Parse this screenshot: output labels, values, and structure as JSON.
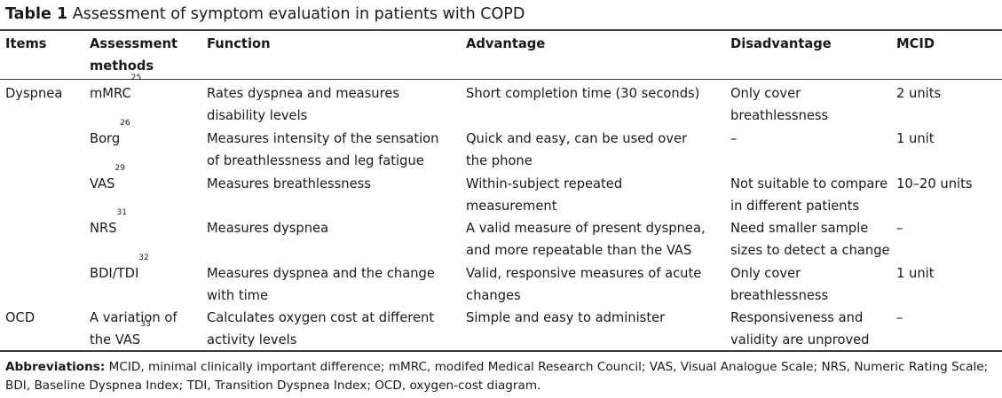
{
  "caption": {
    "number": "Table 1",
    "title": "Assessment of symptom evaluation in patients with COPD"
  },
  "headers": {
    "items": "Items",
    "methods_line1": "Assessment",
    "methods_line2": "methods",
    "function": "Function",
    "advantage": "Advantage",
    "disadvantage": "Disadvantage",
    "mcid": "MCID"
  },
  "rows": [
    {
      "item": "Dyspnea",
      "method": "mMRC",
      "ref": "25",
      "function": [
        "Rates dyspnea and measures",
        "disability levels"
      ],
      "advantage": [
        "Short completion time (30 seconds)"
      ],
      "disadvantage": [
        "Only cover",
        "breathlessness"
      ],
      "mcid": "2 units"
    },
    {
      "item": "",
      "method": "Borg",
      "ref": "26",
      "function": [
        "Measures intensity of the sensation",
        "of breathlessness and leg fatigue"
      ],
      "advantage": [
        "Quick and easy, can be used over",
        "the phone"
      ],
      "disadvantage": [
        "–"
      ],
      "mcid": "1 unit"
    },
    {
      "item": "",
      "method": "VAS",
      "ref": "29",
      "function": [
        "Measures breathlessness"
      ],
      "advantage": [
        "Within-subject repeated",
        "measurement"
      ],
      "disadvantage": [
        "Not suitable to compare",
        "in different patients"
      ],
      "mcid": "10–20 units"
    },
    {
      "item": "",
      "method": "NRS",
      "ref": "31",
      "function": [
        "Measures dyspnea"
      ],
      "advantage": [
        "A valid measure of present dyspnea,",
        "and more repeatable than the VAS"
      ],
      "disadvantage": [
        "Need smaller sample",
        "sizes to detect a change"
      ],
      "mcid": "–"
    },
    {
      "item": "",
      "method": "BDI/TDI",
      "ref": "32",
      "function": [
        "Measures dyspnea and the change",
        "with time"
      ],
      "advantage": [
        "Valid, responsive measures of acute",
        "changes"
      ],
      "disadvantage": [
        "Only cover",
        "breathlessness"
      ],
      "mcid": "1 unit"
    },
    {
      "item": "OCD",
      "method": "A variation of",
      "method2": "the VAS",
      "ref": "33",
      "function": [
        "Calculates oxygen cost at different",
        "activity levels"
      ],
      "advantage": [
        "Simple and easy to administer"
      ],
      "disadvantage": [
        "Responsiveness and",
        "validity are unproved"
      ],
      "mcid": "–"
    }
  ],
  "footnote": {
    "label": "Abbreviations:",
    "text": " MCID, minimal clinically important difference; mMRC, modifed Medical Research Council; VAS, Visual Analogue Scale; NRS, Numeric Rating Scale; BDI, Baseline Dyspnea Index; TDI, Transition Dyspnea Index; OCD, oxygen-cost diagram."
  }
}
